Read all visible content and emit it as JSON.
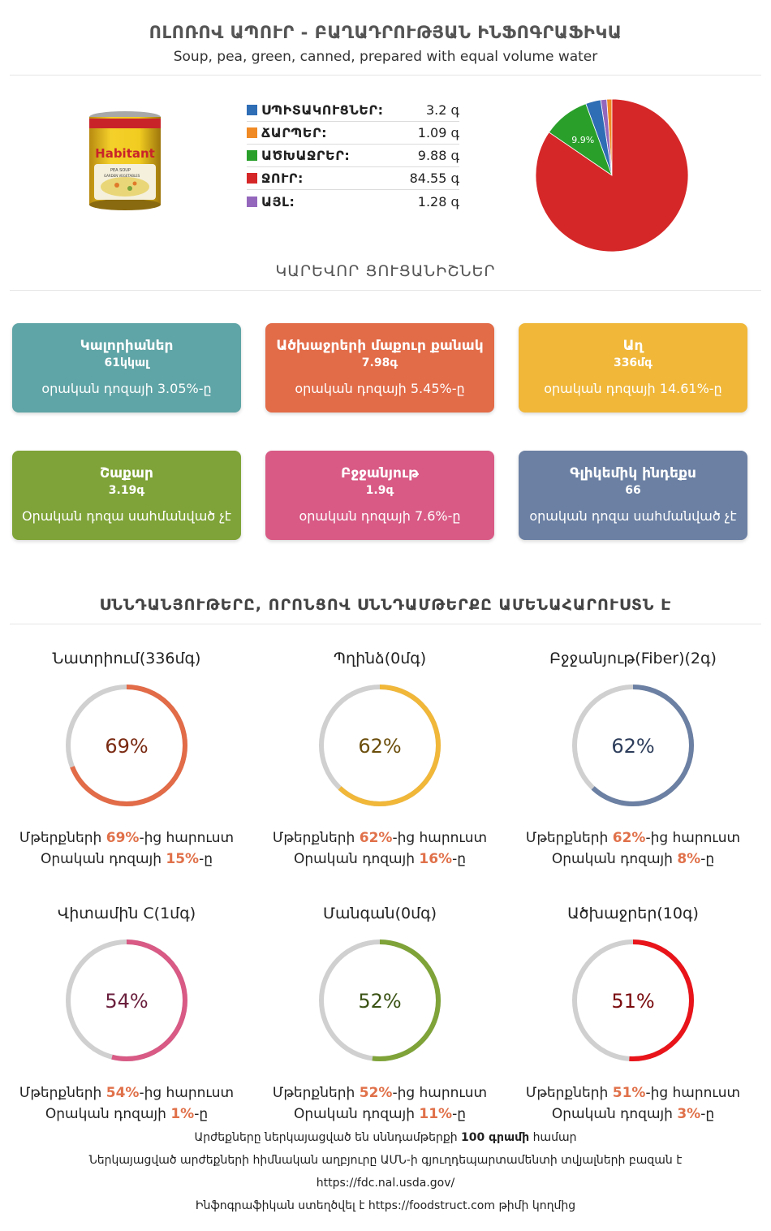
{
  "header": {
    "title": "ՈԼՈՌՈՎ ԱՊՈՒՐ - ԲԱՂԱԴՐՈՒԹՅԱՆ ԻՆՖՈԳՐԱՖԻԿԱ",
    "subtitle": "Soup, pea, green, canned, prepared with equal volume water"
  },
  "product_image": {
    "brand": "Habitant",
    "line1": "PEA SOUP",
    "line2": "GARDEN VEGETABLES"
  },
  "macros": [
    {
      "label": "ՍՊԻՏԱԿՈՒՑՆԵՐ:",
      "value": "3.2 գ",
      "color": "#2f6db5"
    },
    {
      "label": "ՃԱՐՊԵՐ:",
      "value": "1.09 գ",
      "color": "#f08a24"
    },
    {
      "label": "ԱԾԽԱՋՐԵՐ:",
      "value": "9.88 գ",
      "color": "#2aa02b"
    },
    {
      "label": "ՋՈՒՐ:",
      "value": "84.55 գ",
      "color": "#d62728"
    },
    {
      "label": "ԱՅԼ:",
      "value": "1.28 գ",
      "color": "#9467bd"
    }
  ],
  "chart_data": {
    "type": "pie",
    "slices": [
      {
        "label": "ՋՈՒՐ",
        "value": 84.55,
        "color": "#d62728",
        "text": "84.5%"
      },
      {
        "label": "ԱԾԽԱՋՐԵՐ",
        "value": 9.88,
        "color": "#2aa02b",
        "text": "9.9%"
      },
      {
        "label": "ՍՊԻՏԱԿՈՒՑՆԵՐ",
        "value": 3.2,
        "color": "#2f6db5",
        "text": ""
      },
      {
        "label": "ԱՅԼ",
        "value": 1.28,
        "color": "#9467bd",
        "text": ""
      },
      {
        "label": "ՃԱՐՊԵՐ",
        "value": 1.09,
        "color": "#f08a24",
        "text": ""
      }
    ]
  },
  "key_indicators": {
    "title": "ԿԱՐԵՎՈՐ ՑՈՒՑԱՆԻՇՆԵՐ",
    "cards": [
      {
        "title": "Կալորիաներ",
        "value": "61կկալ",
        "daily": "օրական դոզայի 3.05%-ը",
        "color": "#5fa4a6"
      },
      {
        "title": "Ածխաջրերի մաքուր քանակ",
        "value": "7.98գ",
        "daily": "օրական դոզայի 5.45%-ը",
        "color": "#e26b48"
      },
      {
        "title": "Աղ",
        "value": "336մգ",
        "daily": "օրական դոզայի 14.61%-ը",
        "color": "#f0b739"
      },
      {
        "title": "Շաքար",
        "value": "3.19գ",
        "daily": "Օրական դոզա սահմանված չէ",
        "color": "#7fa338"
      },
      {
        "title": "Բջջանյութ",
        "value": "1.9գ",
        "daily": "օրական դոզայի 7.6%-ը",
        "color": "#d85a85"
      },
      {
        "title": "Գլիկեմիկ ինդեքս",
        "value": "66",
        "daily": "օրական դոզա սահմանված չէ",
        "color": "#6b80a3"
      }
    ]
  },
  "rich_nutrients": {
    "title": "ՍՆՆԴԱՆՅՈՒԹԵՐԸ, ՈՐՈՆՑՈՎ ՍՆՆԴԱՄԹԵՐՔԸ ԱՄԵՆԱՀԱՐՈՒՍՏՆ Է",
    "prefix1": "Մթերքների ",
    "suffix1": "-ից հարուստ",
    "prefix2": "Օրական դոզայի ",
    "suffix2": "-ը",
    "items": [
      {
        "name": "Նատրիում(336մգ)",
        "percent": 69,
        "percent_text": "69%",
        "daily_text": "15%",
        "color": "#e26b48",
        "text_color": "#7a2a12"
      },
      {
        "name": "Պղինձ(0մգ)",
        "percent": 62,
        "percent_text": "62%",
        "daily_text": "16%",
        "color": "#f0b739",
        "text_color": "#6b4e0c"
      },
      {
        "name": "Բջջանյութ(Fiber)(2գ)",
        "percent": 62,
        "percent_text": "62%",
        "daily_text": "8%",
        "color": "#6b80a3",
        "text_color": "#2c3c5a"
      },
      {
        "name": "Վիտամին C(1մգ)",
        "percent": 54,
        "percent_text": "54%",
        "daily_text": "1%",
        "color": "#d85a85",
        "text_color": "#6a1f3c"
      },
      {
        "name": "Մանգան(0մգ)",
        "percent": 52,
        "percent_text": "52%",
        "daily_text": "11%",
        "color": "#7fa338",
        "text_color": "#3a5214"
      },
      {
        "name": "Ածխաջրեր(10գ)",
        "percent": 51,
        "percent_text": "51%",
        "daily_text": "3%",
        "color": "#e8141a",
        "text_color": "#7a0a0d"
      }
    ]
  },
  "footer": {
    "line1_pre": "Արժեքները ներկայացված են սննդամթերքի ",
    "line1_bold": "100 գրամի",
    "line1_post": " համար",
    "line2": "Ներկայացված արժեքների հիմնական աղբյուրը ԱՄՆ-ի գյուղդեպարտամենտի տվյալների բազան է",
    "line3": "https://fdc.nal.usda.gov/",
    "line4": "Ինֆոգրաֆիկան ստեղծվել է https://foodstruct.com թիմի կողմից"
  }
}
